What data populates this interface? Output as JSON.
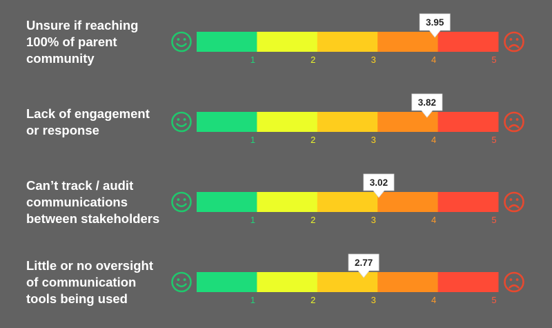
{
  "chart_data": {
    "type": "bar",
    "scale": {
      "min": 1,
      "max": 5,
      "ticks": [
        "1",
        "2",
        "3",
        "4",
        "5"
      ]
    },
    "colors": {
      "background": "#626262",
      "segments": [
        "#1ddc7a",
        "#ecfd28",
        "#fecd1d",
        "#fe8d1d",
        "#fe4a36"
      ],
      "ticks": [
        "#22d37a",
        "#eaf52a",
        "#fed31f",
        "#fe9a2a",
        "#fe5a40"
      ],
      "happy_face": "#20c86d",
      "sad_face": "#e7492f",
      "callout": "#ffffff"
    },
    "icons": {
      "left": "happy-face-icon",
      "right": "sad-face-icon"
    },
    "rows": [
      {
        "label": [
          "Unsure if reaching",
          "100% of parent",
          "community"
        ],
        "value": 3.95,
        "value_label": "3.95"
      },
      {
        "label": [
          "Lack of engagement",
          "or response"
        ],
        "value": 3.82,
        "value_label": "3.82"
      },
      {
        "label": [
          "Can’t track / audit",
          "communications",
          "between stakeholders"
        ],
        "value": 3.02,
        "value_label": "3.02"
      },
      {
        "label": [
          "Little or no oversight",
          "of communication",
          "tools being used"
        ],
        "value": 2.77,
        "value_label": "2.77"
      }
    ]
  }
}
